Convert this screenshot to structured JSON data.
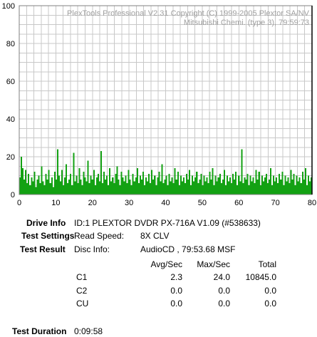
{
  "chart_data": {
    "type": "bar",
    "watermark": [
      "PlexTools Professional V2.31 Copyright (C) 1999-2005 Plextor SA/NV",
      "Mitsubishi Chemi. (type 3), 79:59:73"
    ],
    "xlim": [
      0,
      80
    ],
    "ylim": [
      0,
      100
    ],
    "x_ticks": [
      0,
      10,
      20,
      30,
      40,
      50,
      60,
      70,
      80
    ],
    "y_ticks": [
      0,
      20,
      40,
      60,
      80,
      100
    ],
    "grid": true,
    "bar_color": "#13a113",
    "marker_x": 80,
    "series": [
      {
        "values": [
          9,
          20,
          14,
          8,
          13,
          6,
          11,
          5,
          9,
          7,
          12,
          4,
          8,
          10,
          6,
          15,
          7,
          5,
          11,
          8,
          13,
          6,
          9,
          4,
          12,
          8,
          24,
          10,
          7,
          13,
          5,
          9,
          16,
          6,
          8,
          11,
          5,
          22,
          7,
          10,
          6,
          14,
          8,
          5,
          12,
          9,
          7,
          18,
          6,
          10,
          8,
          13,
          5,
          9,
          11,
          7,
          23,
          6,
          12,
          8,
          10,
          5,
          14,
          7,
          9,
          6,
          11,
          15,
          8,
          5,
          12,
          9,
          7,
          10,
          6,
          13,
          8,
          5,
          11,
          7,
          9,
          14,
          6,
          10,
          8,
          12,
          5,
          9,
          7,
          11,
          6,
          13,
          8,
          10,
          5,
          9,
          12,
          7,
          16,
          6,
          8,
          10,
          5,
          11,
          7,
          9,
          6,
          14,
          8,
          12,
          5,
          10,
          7,
          9,
          6,
          11,
          8,
          13,
          5,
          10,
          7,
          9,
          12,
          6,
          8,
          11,
          5,
          10,
          7,
          9,
          6,
          12,
          8,
          14,
          5,
          10,
          7,
          9,
          11,
          6,
          8,
          13,
          5,
          10,
          7,
          9,
          6,
          11,
          8,
          12,
          5,
          10,
          7,
          24,
          6,
          9,
          8,
          11,
          5,
          10,
          7,
          9,
          6,
          13,
          8,
          12,
          5,
          10,
          7,
          9,
          11,
          6,
          8,
          14,
          5,
          10,
          7,
          9,
          6,
          11,
          8,
          12,
          5,
          10,
          7,
          9,
          6,
          13,
          8,
          11,
          5,
          10,
          7,
          9,
          6,
          12,
          8,
          14,
          5,
          10,
          7,
          9
        ]
      }
    ]
  },
  "info": {
    "drive_info_label": "Drive Info",
    "drive_info_value": "ID:1 PLEXTOR DVDR PX-716A V1.09 (#538633)",
    "test_settings_label": "Test Settings",
    "read_speed_label": "Read Speed:",
    "read_speed_value": "8X CLV",
    "test_result_label": "Test Result",
    "disc_info_label": "Disc Info:",
    "disc_info_value": "AudioCD , 79:53.68 MSF",
    "col_avg": "Avg/Sec",
    "col_max": "Max/Sec",
    "col_total": "Total",
    "rows": [
      {
        "name": "C1",
        "avg": "2.3",
        "max": "24.0",
        "total": "10845.0"
      },
      {
        "name": "C2",
        "avg": "0.0",
        "max": "0.0",
        "total": "0.0"
      },
      {
        "name": "CU",
        "avg": "0.0",
        "max": "0.0",
        "total": "0.0"
      }
    ],
    "test_duration_label": "Test Duration",
    "test_duration_value": "0:09:58"
  }
}
